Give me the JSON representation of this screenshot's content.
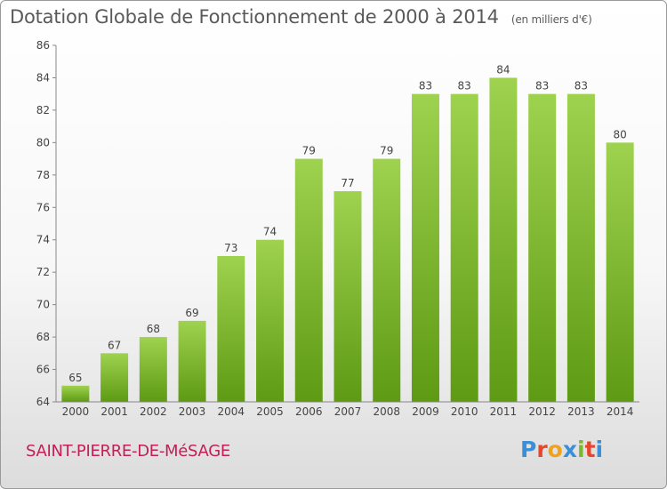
{
  "header": {
    "title": "Dotation Globale de Fonctionnement de 2000 à 2014",
    "unit": "(en milliers d'€)"
  },
  "footer": {
    "commune": "SAINT-PIERRE-DE-MéSAGE",
    "logo": {
      "text": "Proxiti",
      "colors": [
        "#3a8fd8",
        "#e8462a",
        "#f0a21b",
        "#3a8fd8",
        "#7cb82f",
        "#e8462a",
        "#3a8fd8"
      ]
    }
  },
  "chart_data": {
    "type": "bar",
    "title": "Dotation Globale de Fonctionnement de 2000 à 2014",
    "subtitle": "(en milliers d'€)",
    "xlabel": "",
    "ylabel": "",
    "categories": [
      "2000",
      "2001",
      "2002",
      "2003",
      "2004",
      "2005",
      "2006",
      "2007",
      "2008",
      "2009",
      "2010",
      "2011",
      "2012",
      "2013",
      "2014"
    ],
    "values": [
      65,
      67,
      68,
      69,
      73,
      74,
      79,
      77,
      79,
      83,
      83,
      84,
      83,
      83,
      80
    ],
    "ylim": [
      64,
      86
    ],
    "yticks": [
      64,
      66,
      68,
      70,
      72,
      74,
      76,
      78,
      80,
      82,
      84,
      86
    ],
    "grid": false,
    "legend": "none",
    "colors": {
      "bar_top": "#9ed24f",
      "bar_bottom": "#5e9a14",
      "axis": "#888888"
    }
  }
}
